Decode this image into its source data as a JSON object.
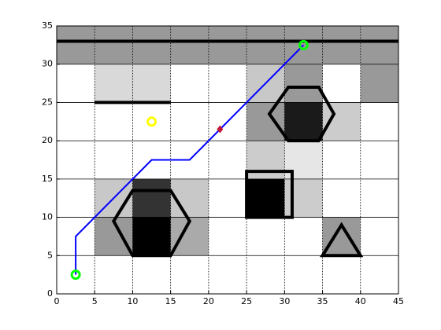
{
  "chart_data": {
    "type": "grid-map",
    "xlim": [
      0,
      45
    ],
    "ylim": [
      0,
      35
    ],
    "xticks": [
      0,
      5,
      10,
      15,
      20,
      25,
      30,
      35,
      40,
      45
    ],
    "yticks": [
      0,
      5,
      10,
      15,
      20,
      25,
      30,
      35
    ],
    "grid": true,
    "cell_size": 5,
    "cells": [
      {
        "x": 0,
        "y": 30,
        "color": "#999999"
      },
      {
        "x": 5,
        "y": 30,
        "color": "#999999"
      },
      {
        "x": 10,
        "y": 30,
        "color": "#999999"
      },
      {
        "x": 15,
        "y": 30,
        "color": "#999999"
      },
      {
        "x": 20,
        "y": 30,
        "color": "#999999"
      },
      {
        "x": 25,
        "y": 30,
        "color": "#999999"
      },
      {
        "x": 30,
        "y": 30,
        "color": "#999999"
      },
      {
        "x": 35,
        "y": 30,
        "color": "#999999"
      },
      {
        "x": 40,
        "y": 30,
        "color": "#999999"
      },
      {
        "x": 5,
        "y": 25,
        "color": "#d9d9d9"
      },
      {
        "x": 10,
        "y": 25,
        "color": "#d9d9d9"
      },
      {
        "x": 25,
        "y": 25,
        "color": "#c8c8c8"
      },
      {
        "x": 30,
        "y": 25,
        "color": "#999999"
      },
      {
        "x": 40,
        "y": 25,
        "color": "#999999"
      },
      {
        "x": 25,
        "y": 20,
        "color": "#999999"
      },
      {
        "x": 30,
        "y": 20,
        "color": "#1a1a1a"
      },
      {
        "x": 35,
        "y": 20,
        "color": "#cccccc"
      },
      {
        "x": 25,
        "y": 15,
        "color": "#cccccc"
      },
      {
        "x": 30,
        "y": 15,
        "color": "#e6e6e6"
      },
      {
        "x": 5,
        "y": 10,
        "color": "#c8c8c8"
      },
      {
        "x": 10,
        "y": 10,
        "color": "#333333"
      },
      {
        "x": 15,
        "y": 10,
        "color": "#c8c8c8"
      },
      {
        "x": 25,
        "y": 10,
        "color": "#000000"
      },
      {
        "x": 30,
        "y": 10,
        "color": "#cccccc"
      },
      {
        "x": 5,
        "y": 5,
        "color": "#999999"
      },
      {
        "x": 10,
        "y": 5,
        "color": "#000000"
      },
      {
        "x": 15,
        "y": 5,
        "color": "#aaaaaa"
      },
      {
        "x": 35,
        "y": 5,
        "color": "#999999"
      }
    ],
    "walls": [
      {
        "x": [
          0,
          45
        ],
        "y": [
          33,
          33
        ]
      },
      {
        "x": [
          5,
          15
        ],
        "y": [
          25,
          25
        ]
      }
    ],
    "shapes": [
      {
        "x": [
          7.5,
          10,
          15,
          17.5,
          15,
          10
        ],
        "y": [
          9.5,
          5,
          5,
          9.5,
          13.5,
          13.5
        ]
      },
      {
        "x": [
          28,
          30.5,
          34.5,
          36.5,
          34.5,
          30.5
        ],
        "y": [
          23.5,
          20,
          20,
          23.5,
          27,
          27
        ]
      },
      {
        "x": [
          25,
          31,
          31,
          25
        ],
        "y": [
          10,
          10,
          16,
          16
        ]
      },
      {
        "x": [
          35,
          40,
          37.5
        ],
        "y": [
          5,
          5,
          9
        ]
      }
    ],
    "path": {
      "color": "#0000ff",
      "x": [
        2.5,
        2.5,
        12.5,
        17.5,
        32.5
      ],
      "y": [
        2.5,
        7.5,
        17.5,
        17.5,
        32.5
      ]
    },
    "markers": [
      {
        "x": 2.5,
        "y": 2.5,
        "color": "#00ff00",
        "shape": "circle"
      },
      {
        "x": 32.5,
        "y": 32.5,
        "color": "#00ff00",
        "shape": "circle"
      },
      {
        "x": 12.5,
        "y": 22.5,
        "color": "#ffff00",
        "shape": "circle"
      },
      {
        "x": 21.5,
        "y": 21.5,
        "color": "#c0143c",
        "shape": "diamond"
      }
    ]
  }
}
